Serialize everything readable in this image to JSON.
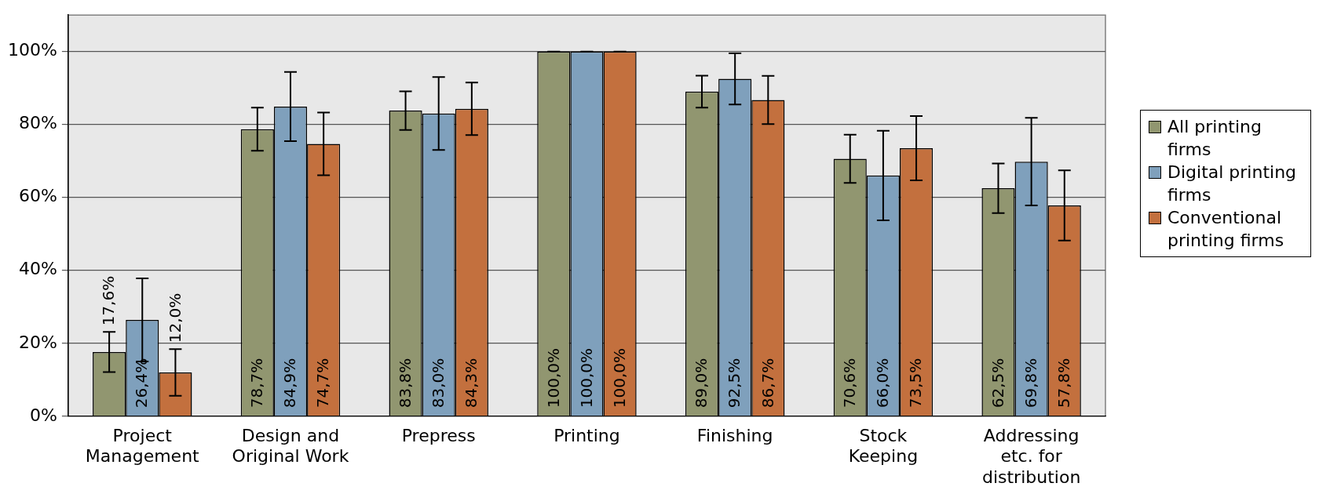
{
  "chart_data": {
    "type": "bar",
    "categories": [
      "Project Management",
      "Design and Original Work",
      "Prepress",
      "Printing",
      "Finishing",
      "Stock Keeping",
      "Addressing etc. for distribution"
    ],
    "series": [
      {
        "name": "All printing firms",
        "color": "#919670",
        "values": [
          17.6,
          78.7,
          83.8,
          100.0,
          89.0,
          70.6,
          62.5
        ],
        "errors": [
          5.5,
          5.9,
          5.3,
          0,
          4.4,
          6.6,
          6.8
        ],
        "value_labels": [
          "17,6%",
          "78,7%",
          "83,8%",
          "100,0%",
          "89,0%",
          "70,6%",
          "62,5%"
        ]
      },
      {
        "name": "Digital printing firms",
        "color": "#7fa0bc",
        "values": [
          26.4,
          84.9,
          83.0,
          100.0,
          92.5,
          66.0,
          69.8
        ],
        "errors": [
          11.4,
          9.5,
          10,
          0,
          7,
          12.3,
          12
        ],
        "value_labels": [
          "26,4%",
          "84,9%",
          "83,0%",
          "100,0%",
          "92,5%",
          "66,0%",
          "69,8%"
        ]
      },
      {
        "name": "Conventional printing firms",
        "color": "#c3703e",
        "values": [
          12.0,
          74.7,
          84.3,
          100.0,
          86.7,
          73.5,
          57.8
        ],
        "errors": [
          6.4,
          8.6,
          7.2,
          0,
          6.6,
          8.8,
          9.6
        ],
        "value_labels": [
          "12,0%",
          "74,7%",
          "84,3%",
          "100,0%",
          "86,7%",
          "73,5%",
          "57,8%"
        ]
      }
    ],
    "ylim": [
      0,
      110
    ],
    "yticks": [
      {
        "value": 0,
        "label": "0%"
      },
      {
        "value": 20,
        "label": "20%"
      },
      {
        "value": 40,
        "label": "40%"
      },
      {
        "value": 60,
        "label": "60%"
      },
      {
        "value": 80,
        "label": "80%"
      },
      {
        "value": 100,
        "label": "100%"
      }
    ],
    "grid": "y",
    "legend": "right"
  }
}
